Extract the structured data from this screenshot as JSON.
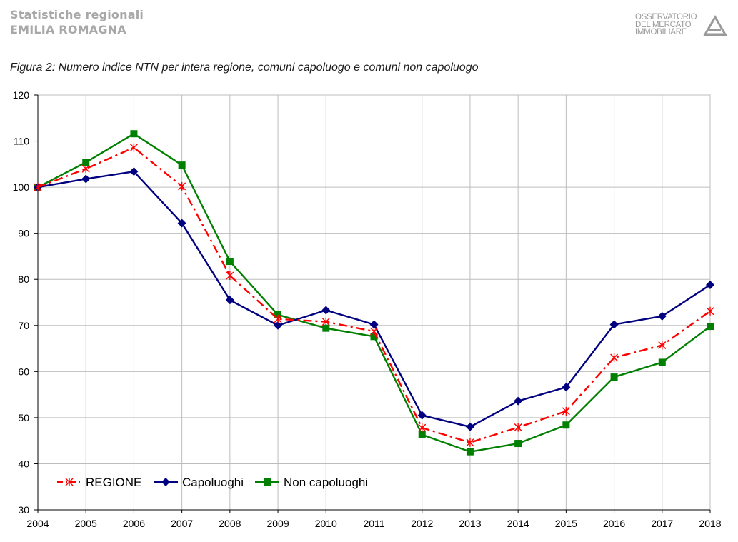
{
  "header": {
    "line1": "Statistiche regionali",
    "line2": "EMILIA ROMAGNA",
    "logo_line1": "OSSERVATORIO",
    "logo_line2": "DEL MERCATO",
    "logo_line3": "IMMOBILIARE",
    "logo_icon": "house-logo-icon"
  },
  "figure": {
    "title": "Figura 2: Numero indice NTN per intera regione, comuni capoluogo e comuni non capoluogo"
  },
  "chart_data": {
    "type": "line",
    "x": [
      2004,
      2005,
      2006,
      2007,
      2008,
      2009,
      2010,
      2011,
      2012,
      2013,
      2014,
      2015,
      2016,
      2017,
      2018
    ],
    "ylim": [
      30,
      120
    ],
    "yticks": [
      30,
      40,
      50,
      60,
      70,
      80,
      90,
      100,
      110,
      120
    ],
    "grid": true,
    "legend_position": "bottom-left",
    "series": [
      {
        "name": "REGIONE",
        "color": "#ff0000",
        "marker": "star",
        "line_style": "dash-dot",
        "values": [
          100,
          104.0,
          108.6,
          100.2,
          80.8,
          71.4,
          70.8,
          68.7,
          47.8,
          44.6,
          47.9,
          51.4,
          63.0,
          65.7,
          73.1
        ]
      },
      {
        "name": "Capoluoghi",
        "color": "#000080",
        "marker": "diamond",
        "line_style": "solid",
        "values": [
          100,
          101.8,
          103.4,
          92.2,
          75.5,
          70.0,
          73.3,
          70.2,
          50.5,
          48.0,
          53.6,
          56.6,
          70.2,
          72.0,
          78.8
        ]
      },
      {
        "name": "Non capoluoghi",
        "color": "#008000",
        "marker": "square",
        "line_style": "solid",
        "values": [
          100,
          105.4,
          111.6,
          104.8,
          83.9,
          72.3,
          69.4,
          67.6,
          46.3,
          42.6,
          44.4,
          48.4,
          58.8,
          62.0,
          69.8
        ]
      }
    ]
  }
}
